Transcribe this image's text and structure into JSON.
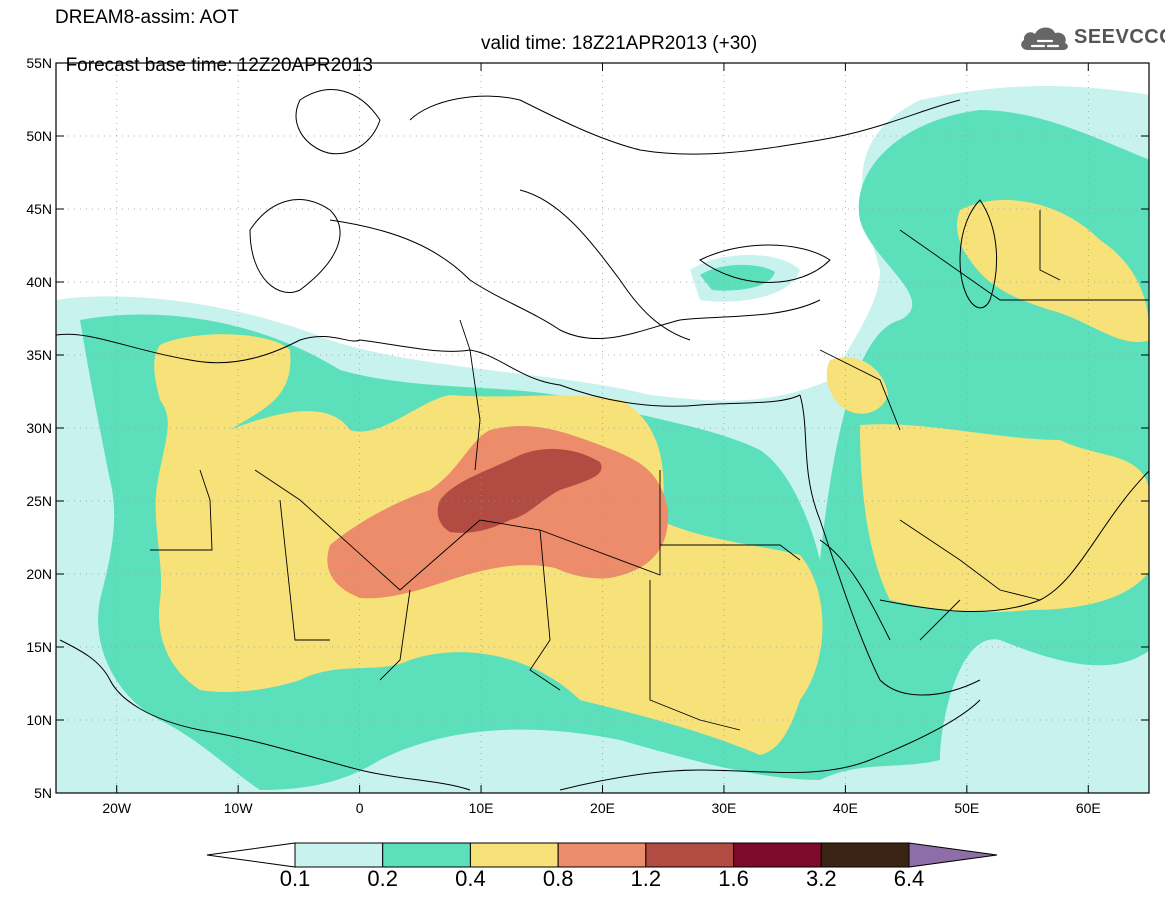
{
  "title": {
    "line1": "DREAM8-assim: AOT",
    "base_time": "Forecast base time: 12Z20APR2013",
    "valid_time": "valid time: 18Z21APR2013 (+30)"
  },
  "logo": {
    "text": "SEEVCCC",
    "icon": "cloud-icon"
  },
  "axes": {
    "lat_labels": [
      "55N",
      "50N",
      "45N",
      "40N",
      "35N",
      "30N",
      "25N",
      "20N",
      "15N",
      "10N",
      "5N"
    ],
    "lon_labels": [
      "20W",
      "10W",
      "0",
      "10E",
      "20E",
      "30E",
      "40E",
      "50E",
      "60E"
    ],
    "lon_range": [
      -25,
      65
    ],
    "lat_range": [
      5,
      55
    ],
    "grid": "dotted"
  },
  "colorbar": {
    "levels": [
      "0.1",
      "0.2",
      "0.4",
      "0.8",
      "1.2",
      "1.6",
      "3.2",
      "6.4"
    ],
    "colors": [
      "#c8f2ee",
      "#5ce0bc",
      "#f7e27a",
      "#ec8c6a",
      "#b24c43",
      "#7d0a2a",
      "#3b2415",
      "#8e6ea8"
    ],
    "extend": "both"
  }
}
